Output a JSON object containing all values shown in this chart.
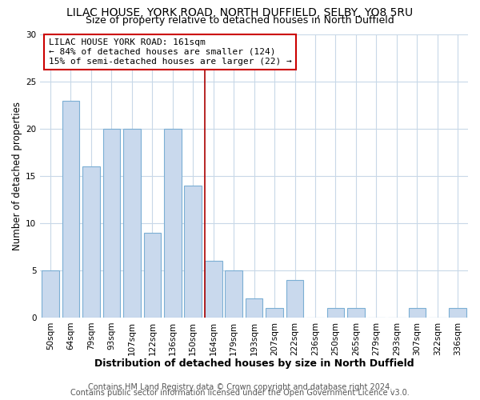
{
  "title": "LILAC HOUSE, YORK ROAD, NORTH DUFFIELD, SELBY, YO8 5RU",
  "subtitle": "Size of property relative to detached houses in North Duffield",
  "xlabel": "Distribution of detached houses by size in North Duffield",
  "ylabel": "Number of detached properties",
  "bar_labels": [
    "50sqm",
    "64sqm",
    "79sqm",
    "93sqm",
    "107sqm",
    "122sqm",
    "136sqm",
    "150sqm",
    "164sqm",
    "179sqm",
    "193sqm",
    "207sqm",
    "222sqm",
    "236sqm",
    "250sqm",
    "265sqm",
    "279sqm",
    "293sqm",
    "307sqm",
    "322sqm",
    "336sqm"
  ],
  "bar_values": [
    5,
    23,
    16,
    20,
    20,
    9,
    20,
    14,
    6,
    5,
    2,
    1,
    4,
    0,
    1,
    1,
    0,
    0,
    1,
    0,
    1
  ],
  "bar_color": "#c9d9ed",
  "bar_edgecolor": "#7bafd4",
  "bar_linewidth": 0.8,
  "vline_color": "#aa0000",
  "vline_label": "LILAC HOUSE YORK ROAD: 161sqm",
  "annotation_line2": "← 84% of detached houses are smaller (124)",
  "annotation_line3": "15% of semi-detached houses are larger (22) →",
  "annotation_box_edgecolor": "#cc0000",
  "annotation_box_facecolor": "#ffffff",
  "ylim": [
    0,
    30
  ],
  "yticks": [
    0,
    5,
    10,
    15,
    20,
    25,
    30
  ],
  "figure_bg_color": "#ffffff",
  "plot_bg_color": "#ffffff",
  "grid_color": "#c8d8e8",
  "footer1": "Contains HM Land Registry data © Crown copyright and database right 2024.",
  "footer2": "Contains public sector information licensed under the Open Government Licence v3.0.",
  "title_fontsize": 10,
  "subtitle_fontsize": 9,
  "xlabel_fontsize": 9,
  "ylabel_fontsize": 8.5,
  "tick_fontsize": 7.5,
  "annotation_fontsize": 8,
  "footer_fontsize": 7
}
